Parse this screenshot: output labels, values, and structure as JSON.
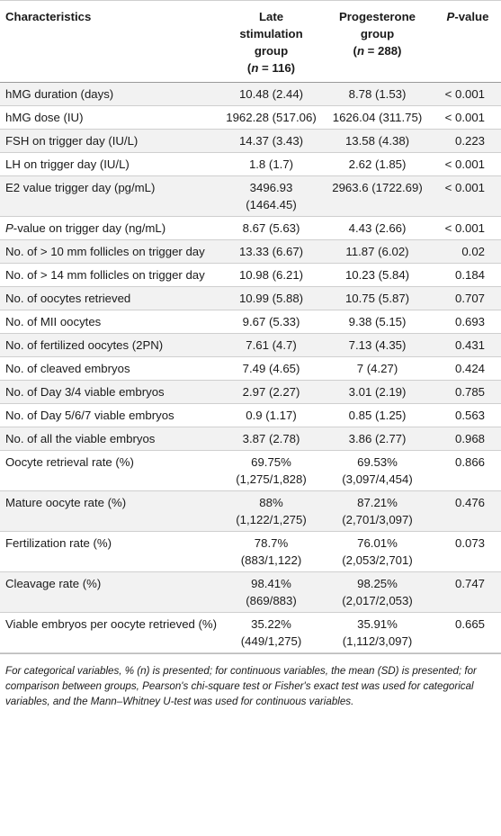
{
  "table": {
    "headers": {
      "characteristics": "Characteristics",
      "late_line1": "Late",
      "late_line2": "stimulation",
      "late_line3": "group",
      "late_n_prefix": "(",
      "late_n_var": "n",
      "late_n_rest": " = 116)",
      "prog_line1": "Progesterone",
      "prog_line2": "group",
      "prog_n_prefix": "(",
      "prog_n_var": "n",
      "prog_n_rest": " = 288)",
      "pvalue_var": "P",
      "pvalue_rest": "-value"
    },
    "rows": [
      {
        "label": "hMG duration (days)",
        "late": "10.48 (2.44)",
        "prog": "8.78 (1.53)",
        "p": "< 0.001"
      },
      {
        "label": "hMG dose (IU)",
        "late": "1962.28 (517.06)",
        "prog": "1626.04 (311.75)",
        "p": "< 0.001"
      },
      {
        "label": "FSH on trigger day (IU/L)",
        "late": "14.37 (3.43)",
        "prog": "13.58 (4.38)",
        "p": "0.223"
      },
      {
        "label": "LH on trigger day (IU/L)",
        "late": "1.8 (1.7)",
        "prog": "2.62 (1.85)",
        "p": "< 0.001"
      },
      {
        "label": "E2 value trigger day (pg/mL)",
        "late": "3496.93 (1464.45)",
        "prog": "2963.6 (1722.69)",
        "p": "< 0.001"
      },
      {
        "label_italic": "P",
        "label": "-value on trigger day (ng/mL)",
        "late": "8.67 (5.63)",
        "prog": "4.43 (2.66)",
        "p": "< 0.001"
      },
      {
        "label": "No. of > 10 mm follicles on trigger day",
        "late": "13.33 (6.67)",
        "prog": "11.87 (6.02)",
        "p": "0.02"
      },
      {
        "label": "No. of > 14 mm follicles on trigger day",
        "late": "10.98 (6.21)",
        "prog": "10.23 (5.84)",
        "p": "0.184"
      },
      {
        "label": "No. of oocytes retrieved",
        "late": "10.99 (5.88)",
        "prog": "10.75 (5.87)",
        "p": "0.707"
      },
      {
        "label": "No. of MII oocytes",
        "late": "9.67 (5.33)",
        "prog": "9.38 (5.15)",
        "p": "0.693"
      },
      {
        "label": "No. of fertilized oocytes (2PN)",
        "late": "7.61 (4.7)",
        "prog": "7.13 (4.35)",
        "p": "0.431"
      },
      {
        "label": "No. of cleaved embryos",
        "late": "7.49 (4.65)",
        "prog": "7 (4.27)",
        "p": "0.424"
      },
      {
        "label": "No. of Day 3/4 viable embryos",
        "late": "2.97 (2.27)",
        "prog": "3.01 (2.19)",
        "p": "0.785"
      },
      {
        "label": "No. of Day 5/6/7 viable embryos",
        "late": "0.9 (1.17)",
        "prog": "0.85 (1.25)",
        "p": "0.563"
      },
      {
        "label": "No. of all the viable embryos",
        "late": "3.87 (2.78)",
        "prog": "3.86 (2.77)",
        "p": "0.968"
      },
      {
        "label": "Oocyte retrieval rate (%)",
        "late": "69.75% (1,275/1,828)",
        "prog": "69.53% (3,097/4,454)",
        "p": "0.866"
      },
      {
        "label": "Mature oocyte rate (%)",
        "late": "88% (1,122/1,275)",
        "prog": "87.21% (2,701/3,097)",
        "p": "0.476"
      },
      {
        "label": "Fertilization rate (%)",
        "late": "78.7% (883/1,122)",
        "prog": "76.01% (2,053/2,701)",
        "p": "0.073"
      },
      {
        "label": "Cleavage rate (%)",
        "late": "98.41% (869/883)",
        "prog": "98.25% (2,017/2,053)",
        "p": "0.747"
      },
      {
        "label": "Viable embryos per oocyte retrieved (%)",
        "late": "35.22% (449/1,275)",
        "prog": "35.91% (1,112/3,097)",
        "p": "0.665"
      }
    ]
  },
  "footnote": "For categorical variables, % (n) is presented; for continuous variables, the mean (SD) is presented; for comparison between groups, Pearson's chi-square test or Fisher's exact test was used for categorical variables, and the Mann–Whitney U-test was used for continuous variables."
}
